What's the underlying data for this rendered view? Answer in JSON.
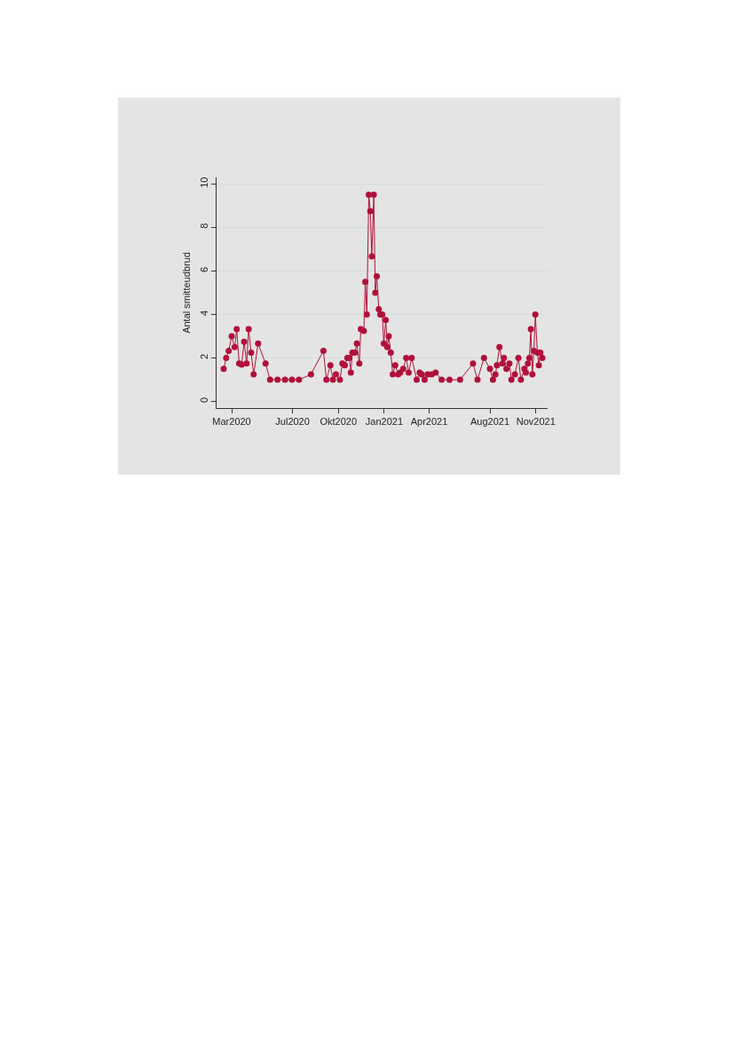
{
  "chart_data": {
    "type": "line",
    "ylabel": "Antal smitteudbrud",
    "x": [
      "2020-02-14",
      "2020-02-19",
      "2020-02-24",
      "2020-03-01",
      "2020-03-07",
      "2020-03-11",
      "2020-03-16",
      "2020-03-21",
      "2020-03-26",
      "2020-03-31",
      "2020-04-04",
      "2020-04-09",
      "2020-04-14",
      "2020-04-23",
      "2020-05-08",
      "2020-05-17",
      "2020-06-01",
      "2020-06-16",
      "2020-06-30",
      "2020-07-14",
      "2020-08-07",
      "2020-09-01",
      "2020-09-07",
      "2020-09-15",
      "2020-09-20",
      "2020-09-26",
      "2020-10-04",
      "2020-10-09",
      "2020-10-14",
      "2020-10-19",
      "2020-10-23",
      "2020-10-26",
      "2020-10-29",
      "2020-11-03",
      "2020-11-07",
      "2020-11-12",
      "2020-11-15",
      "2020-11-21",
      "2020-11-24",
      "2020-11-27",
      "2020-12-01",
      "2020-12-04",
      "2020-12-07",
      "2020-12-11",
      "2020-12-14",
      "2020-12-17",
      "2020-12-21",
      "2020-12-24",
      "2020-12-28",
      "2020-12-31",
      "2021-01-04",
      "2021-01-07",
      "2021-01-10",
      "2021-01-14",
      "2021-01-18",
      "2021-01-23",
      "2021-01-29",
      "2021-02-02",
      "2021-02-08",
      "2021-02-14",
      "2021-02-19",
      "2021-02-25",
      "2021-03-07",
      "2021-03-13",
      "2021-03-17",
      "2021-03-23",
      "2021-03-29",
      "2021-04-06",
      "2021-04-14",
      "2021-04-26",
      "2021-05-12",
      "2021-06-02",
      "2021-06-28",
      "2021-07-07",
      "2021-07-20",
      "2021-08-01",
      "2021-08-07",
      "2021-08-12",
      "2021-08-15",
      "2021-08-20",
      "2021-08-26",
      "2021-08-29",
      "2021-09-03",
      "2021-09-09",
      "2021-09-13",
      "2021-09-20",
      "2021-09-27",
      "2021-10-02",
      "2021-10-09",
      "2021-10-12",
      "2021-10-16",
      "2021-10-19",
      "2021-10-22",
      "2021-10-25",
      "2021-10-28",
      "2021-10-31",
      "2021-11-04",
      "2021-11-07",
      "2021-11-10",
      "2021-11-14"
    ],
    "series": [
      {
        "color": "#b0103a",
        "values": [
          1.5,
          2.0,
          2.33,
          3.0,
          2.5,
          3.33,
          1.75,
          1.7,
          2.75,
          1.75,
          3.33,
          2.25,
          1.25,
          2.67,
          1.75,
          1.0,
          1.0,
          1.0,
          1.0,
          1.0,
          1.25,
          2.33,
          1.0,
          1.67,
          1.0,
          1.25,
          1.0,
          1.75,
          1.67,
          2.0,
          2.0,
          1.33,
          2.25,
          2.25,
          2.67,
          1.75,
          3.33,
          3.25,
          5.5,
          4.0,
          9.5,
          8.75,
          6.67,
          9.5,
          5.0,
          5.75,
          4.25,
          4.0,
          4.0,
          2.67,
          3.75,
          2.5,
          3.0,
          2.25,
          1.25,
          1.67,
          1.25,
          1.33,
          1.5,
          2.0,
          1.33,
          2.0,
          1.0,
          1.33,
          1.25,
          1.0,
          1.25,
          1.25,
          1.33,
          1.0,
          1.0,
          1.0,
          1.75,
          1.0,
          2.0,
          1.5,
          1.0,
          1.25,
          1.67,
          2.5,
          1.75,
          2.0,
          1.5,
          1.75,
          1.0,
          1.25,
          2.0,
          1.0,
          1.5,
          1.33,
          1.75,
          2.0,
          3.33,
          1.25,
          2.33,
          4.0,
          2.25,
          1.67,
          2.25,
          2.0
        ]
      }
    ],
    "xlim": [
      "2020-01-31",
      "2021-11-25"
    ],
    "xticks": [
      {
        "value": "2020-03-01",
        "label": "Mar2020"
      },
      {
        "value": "2020-07-01",
        "label": "Jul2020"
      },
      {
        "value": "2020-10-01",
        "label": "Okt2020"
      },
      {
        "value": "2021-01-01",
        "label": "Jan2021"
      },
      {
        "value": "2021-04-01",
        "label": "Apr2021"
      },
      {
        "value": "2021-08-01",
        "label": "Aug2021"
      },
      {
        "value": "2021-11-01",
        "label": "Nov2021"
      }
    ],
    "ylim": [
      -0.3,
      10.3
    ],
    "yticks": [
      0,
      2,
      4,
      6,
      8,
      10
    ],
    "grid": "y",
    "marker": "circle",
    "line_style": "solid"
  }
}
